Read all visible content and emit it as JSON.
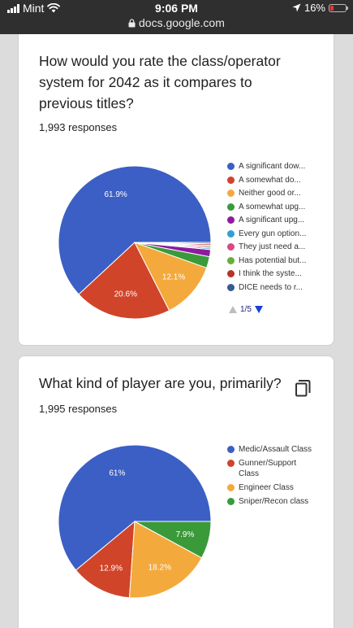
{
  "status_bar": {
    "carrier": "Mint",
    "time": "9:06 PM",
    "url": "docs.google.com",
    "battery": "16%",
    "icons": [
      "signal-bars-icon",
      "wifi-icon",
      "lock-icon",
      "location-arrow-icon",
      "battery-icon"
    ]
  },
  "questions": [
    {
      "title": "How would you rate the class/operator system for 2042 as it compares to previous titles?",
      "responses": "1,993 responses",
      "pager": "1/5",
      "chart_data": {
        "type": "pie",
        "slices": [
          {
            "label": "A significant dow...",
            "value": 61.9,
            "display": "61.9%",
            "color": "#3b5fc4"
          },
          {
            "label": "A somewhat do...",
            "value": 20.6,
            "display": "20.6%",
            "color": "#d0442a"
          },
          {
            "label": "Neither good or...",
            "value": 12.1,
            "display": "12.1%",
            "color": "#f4a93c"
          },
          {
            "label": "A somewhat upg...",
            "value": 2.4,
            "display": "",
            "color": "#3a9a3a"
          },
          {
            "label": "A significant upg...",
            "value": 1.5,
            "display": "",
            "color": "#8e1a9e"
          },
          {
            "label": "Every gun option...",
            "value": 0.3,
            "display": "",
            "color": "#2f9fd4"
          },
          {
            "label": "They just need a...",
            "value": 0.3,
            "display": "",
            "color": "#d64a85"
          },
          {
            "label": "Has potential but...",
            "value": 0.3,
            "display": "",
            "color": "#6aad3b"
          },
          {
            "label": "I think the syste...",
            "value": 0.3,
            "display": "",
            "color": "#b8312b"
          },
          {
            "label": "DICE needs to r...",
            "value": 0.3,
            "display": "",
            "color": "#375a95"
          }
        ]
      }
    },
    {
      "title": "What kind of player are you, primarily?",
      "responses": "1,995 responses",
      "chart_data": {
        "type": "pie",
        "slices": [
          {
            "label": "Medic/Assault Class",
            "value": 61,
            "display": "61%",
            "color": "#3b5fc4"
          },
          {
            "label": "Gunner/Support Class",
            "value": 12.9,
            "display": "12.9%",
            "color": "#d0442a"
          },
          {
            "label": "Engineer Class",
            "value": 18.2,
            "display": "18.2%",
            "color": "#f4a93c"
          },
          {
            "label": "Sniper/Recon class",
            "value": 7.9,
            "display": "7.9%",
            "color": "#3a9a3a"
          }
        ],
        "draw_order": [
          0,
          1,
          2,
          3
        ]
      }
    }
  ]
}
